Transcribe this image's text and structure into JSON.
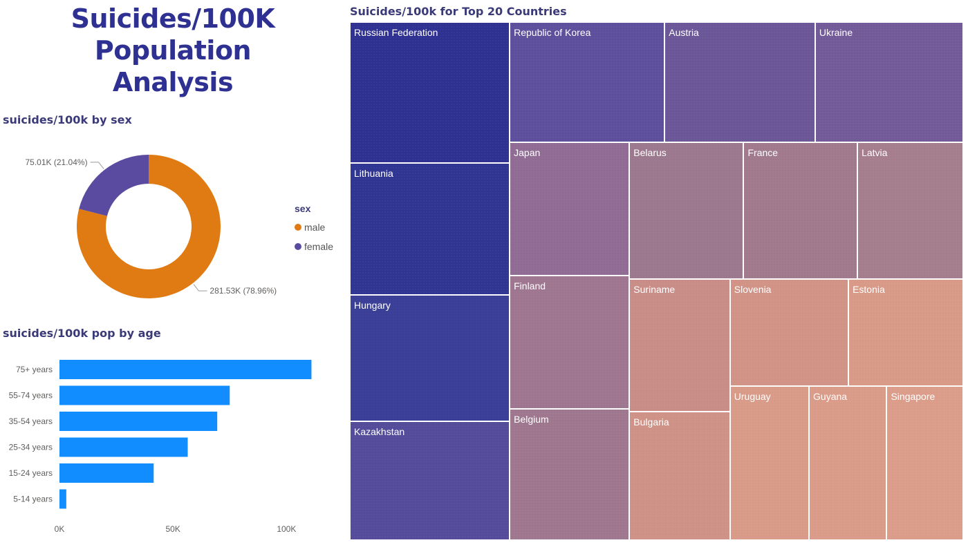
{
  "page": {
    "title_line1": "Suicides/100K Population",
    "title_line2": "Analysis"
  },
  "donut": {
    "title": "suicides/100k by sex",
    "legend_title": "sex",
    "labels": {
      "female": "75.01K (21.04%)",
      "male": "281.53K (78.96%)"
    }
  },
  "bars": {
    "title": "suicides/100k pop by age"
  },
  "treemap": {
    "title": "Suicides/100k for Top 20 Countries"
  },
  "chart_data": [
    {
      "type": "pie",
      "variant": "donut",
      "title": "suicides/100k by sex",
      "legend": {
        "title": "sex",
        "placement": "right"
      },
      "slices": [
        {
          "name": "male",
          "value": 281.53,
          "unit": "K",
          "percent": 78.96,
          "color": "#e07b14"
        },
        {
          "name": "female",
          "value": 75.01,
          "unit": "K",
          "percent": 21.04,
          "color": "#5b4ba0"
        }
      ]
    },
    {
      "type": "bar",
      "orientation": "horizontal",
      "title": "suicides/100k pop by age",
      "categories": [
        "75+ years",
        "55-74 years",
        "35-54 years",
        "25-34 years",
        "15-24 years",
        "5-14 years"
      ],
      "values": [
        111000,
        75000,
        69500,
        56500,
        41500,
        3000
      ],
      "xlim": [
        0,
        120000
      ],
      "x_ticks": [
        0,
        50000,
        100000
      ],
      "x_tick_labels": [
        "0K",
        "50K",
        "100K"
      ],
      "grid": false,
      "color": "#118dff"
    },
    {
      "type": "treemap",
      "title": "Suicides/100k for Top 20 Countries",
      "items": [
        {
          "name": "Russian Federation",
          "value": 11305,
          "color": "#2e3192"
        },
        {
          "name": "Lithuania",
          "value": 10589,
          "color": "#2f3592"
        },
        {
          "name": "Hungary",
          "value": 10157,
          "color": "#3a3e96"
        },
        {
          "name": "Kazakhstan",
          "value": 9520,
          "color": "#544b9a"
        },
        {
          "name": "Republic of Korea",
          "value": 9350,
          "color": "#5d4f9c"
        },
        {
          "name": "Austria",
          "value": 9076,
          "color": "#6b5698"
        },
        {
          "name": "Ukraine",
          "value": 8932,
          "color": "#725a98"
        },
        {
          "name": "Japan",
          "value": 8025,
          "color": "#906c94"
        },
        {
          "name": "Finland",
          "value": 8000,
          "color": "#9e7690"
        },
        {
          "name": "Belgium",
          "value": 7900,
          "color": "#9e778e"
        },
        {
          "name": "Belarus",
          "value": 7831,
          "color": "#9c788f"
        },
        {
          "name": "France",
          "value": 7804,
          "color": "#a0798d"
        },
        {
          "name": "Latvia",
          "value": 7250,
          "color": "#a57d8c"
        },
        {
          "name": "Suriname",
          "value": 6700,
          "color": "#c88d87"
        },
        {
          "name": "Bulgaria",
          "value": 6500,
          "color": "#cf9286"
        },
        {
          "name": "Slovenia",
          "value": 6400,
          "color": "#d19386"
        },
        {
          "name": "Estonia",
          "value": 6200,
          "color": "#d89a87"
        },
        {
          "name": "Uruguay",
          "value": 6100,
          "color": "#d99b88"
        },
        {
          "name": "Guyana",
          "value": 6000,
          "color": "#da9b88"
        },
        {
          "name": "Singapore",
          "value": 5900,
          "color": "#db9c89"
        }
      ]
    }
  ]
}
